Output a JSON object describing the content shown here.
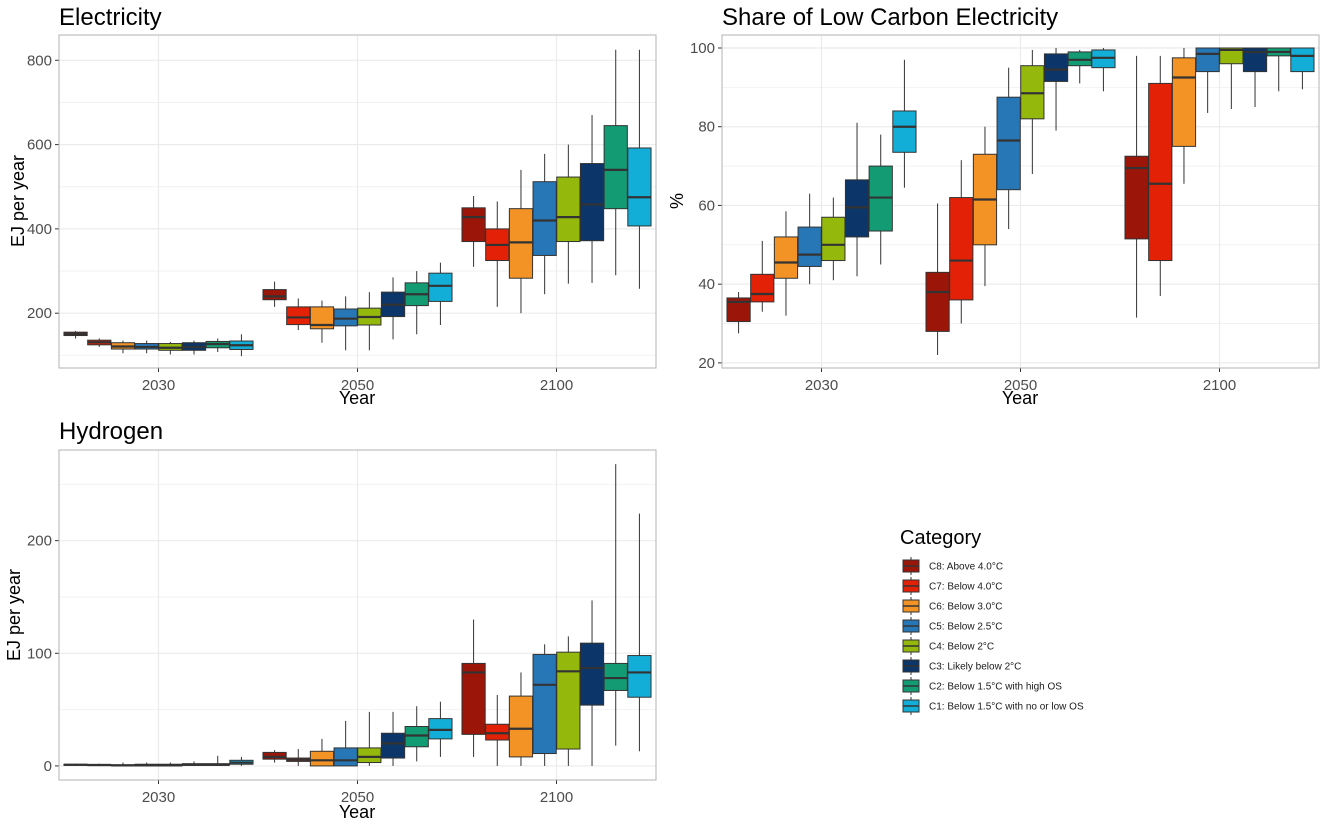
{
  "chart_data": [
    {
      "id": "electricity",
      "type": "boxplot",
      "title": "Electricity",
      "xlabel": "Year",
      "ylabel": "EJ per year",
      "ylim": [
        70,
        860
      ],
      "yticks": [
        200,
        400,
        600,
        800
      ],
      "categories": [
        "2030",
        "2050",
        "2100"
      ],
      "series": [
        {
          "name": "C8: Above 4.0°C",
          "boxes": [
            [
              140,
              147,
              151,
              155,
              158
            ],
            [
              215,
              232,
              240,
              256,
              275
            ],
            [
              310,
              370,
              428,
              450,
              478
            ]
          ]
        },
        {
          "name": "C7: Below 4.0°C",
          "boxes": [
            [
              120,
              125,
              131,
              136,
              140
            ],
            [
              160,
              173,
              190,
              215,
              235
            ],
            [
              215,
              325,
              362,
              400,
              465
            ]
          ]
        },
        {
          "name": "C6: Below 3.0°C",
          "boxes": [
            [
              105,
              115,
              121,
              130,
              135
            ],
            [
              130,
              163,
              172,
              215,
              230
            ],
            [
              200,
              283,
              368,
              448,
              540
            ]
          ]
        },
        {
          "name": "C5: Below 2.5°C",
          "boxes": [
            [
              105,
              115,
              120,
              128,
              135
            ],
            [
              112,
              170,
              187,
              210,
              240
            ],
            [
              245,
              337,
              420,
              512,
              578
            ]
          ]
        },
        {
          "name": "C4: Below 2°C",
          "boxes": [
            [
              102,
              112,
              118,
              128,
              132
            ],
            [
              112,
              172,
              191,
              212,
              250
            ],
            [
              270,
              370,
              428,
              523,
              600
            ]
          ]
        },
        {
          "name": "C3: Likely below 2°C",
          "boxes": [
            [
              102,
              112,
              120,
              130,
              135
            ],
            [
              138,
              192,
              220,
              250,
              285
            ],
            [
              272,
              372,
              458,
              555,
              670
            ]
          ]
        },
        {
          "name": "C2: Below 1.5°C with high OS",
          "boxes": [
            [
              108,
              118,
              127,
              133,
              140
            ],
            [
              150,
              218,
              245,
              272,
              300
            ],
            [
              290,
              448,
              540,
              645,
              825
            ]
          ]
        },
        {
          "name": "C1: Below 1.5°C with no or low OS",
          "boxes": [
            [
              98,
              114,
              124,
              134,
              150
            ],
            [
              172,
              228,
              265,
              295,
              320
            ],
            [
              258,
              407,
              475,
              592,
              825
            ]
          ]
        }
      ]
    },
    {
      "id": "low-carbon",
      "type": "boxplot",
      "title": "Share of Low Carbon Electricity",
      "xlabel": "Year",
      "ylabel": "%",
      "ylim": [
        18.7,
        103.3
      ],
      "yticks": [
        20,
        40,
        60,
        80,
        100
      ],
      "categories": [
        "2030",
        "2050",
        "2100"
      ],
      "series": [
        {
          "name": "C8: Above 4.0°C",
          "boxes": [
            [
              27.5,
              30.5,
              35.5,
              36.5,
              38
            ],
            [
              22,
              28,
              38,
              43,
              60.5
            ],
            [
              31.5,
              51.5,
              69.5,
              72.5,
              98
            ]
          ]
        },
        {
          "name": "C7: Below 4.0°C",
          "boxes": [
            [
              33,
              35.5,
              37.5,
              42.5,
              51
            ],
            [
              30,
              36,
              46,
              62,
              71.5
            ],
            [
              37,
              46,
              65.5,
              91,
              98
            ]
          ]
        },
        {
          "name": "C6: Below 3.0°C",
          "boxes": [
            [
              32,
              41.5,
              45.5,
              52,
              58.5
            ],
            [
              39.5,
              50,
              61.5,
              73,
              80
            ],
            [
              65.5,
              75,
              92.5,
              97.5,
              100
            ]
          ]
        },
        {
          "name": "C5: Below 2.5°C",
          "boxes": [
            [
              40,
              44.5,
              47.5,
              54.5,
              63
            ],
            [
              54,
              64,
              76.5,
              87.5,
              95
            ],
            [
              83.5,
              94,
              98.5,
              100,
              100
            ]
          ]
        },
        {
          "name": "C4: Below 2°C",
          "boxes": [
            [
              41,
              46,
              50,
              57,
              62
            ],
            [
              68,
              82,
              88.5,
              95.5,
              99.5
            ],
            [
              84.5,
              96,
              99.5,
              100,
              100
            ]
          ]
        },
        {
          "name": "C3: Likely below 2°C",
          "boxes": [
            [
              42,
              52,
              59.5,
              66.5,
              81
            ],
            [
              79,
              91.5,
              94.5,
              98.5,
              100
            ],
            [
              85,
              94,
              99,
              100,
              100
            ]
          ]
        },
        {
          "name": "C2: Below 1.5°C with high OS",
          "boxes": [
            [
              45,
              53.5,
              62,
              70,
              78
            ],
            [
              91,
              95.5,
              97,
              99,
              99.5
            ],
            [
              89,
              98,
              99,
              100,
              100
            ]
          ]
        },
        {
          "name": "C1: Below 1.5°C with no or low OS",
          "boxes": [
            [
              64.5,
              73.5,
              80,
              84,
              97
            ],
            [
              89,
              95,
              97.5,
              99.5,
              100
            ],
            [
              89.5,
              94,
              98,
              100,
              100
            ]
          ]
        }
      ]
    },
    {
      "id": "hydrogen",
      "type": "boxplot",
      "title": "Hydrogen",
      "xlabel": "Year",
      "ylabel": "EJ per year",
      "ylim": [
        -12.5,
        280.5
      ],
      "yticks": [
        0,
        100,
        200
      ],
      "categories": [
        "2030",
        "2050",
        "2100"
      ],
      "series": [
        {
          "name": "C8: Above 4.0°C",
          "boxes": [
            [
              0,
              0.5,
              1,
              1.5,
              2
            ],
            [
              3,
              6,
              8,
              12,
              14
            ],
            [
              8,
              28,
              83,
              91,
              130
            ]
          ]
        },
        {
          "name": "C7: Below 4.0°C",
          "boxes": [
            [
              0,
              0.3,
              0.8,
              1.3,
              2
            ],
            [
              0,
              4,
              5.5,
              7,
              15
            ],
            [
              0,
              23,
              29,
              37,
              63
            ]
          ]
        },
        {
          "name": "C6: Below 3.0°C",
          "boxes": [
            [
              0,
              0,
              0.5,
              1,
              3
            ],
            [
              0,
              0,
              5,
              13,
              24
            ],
            [
              0,
              8,
              33,
              62,
              83
            ]
          ]
        },
        {
          "name": "C5: Below 2.5°C",
          "boxes": [
            [
              0,
              0,
              0.5,
              1.5,
              3
            ],
            [
              0,
              0,
              5,
              16,
              40
            ],
            [
              0,
              11,
              72,
              99,
              108
            ]
          ]
        },
        {
          "name": "C4: Below 2°C",
          "boxes": [
            [
              0,
              0,
              0.5,
              1.5,
              3
            ],
            [
              0,
              3,
              8,
              16,
              48
            ],
            [
              0,
              15,
              84,
              101,
              115
            ]
          ]
        },
        {
          "name": "C3: Likely below 2°C",
          "boxes": [
            [
              0,
              0.5,
              1,
              2,
              4
            ],
            [
              0,
              7,
              20,
              29,
              48
            ],
            [
              0,
              54,
              87,
              109,
              147
            ]
          ]
        },
        {
          "name": "C2: Below 1.5°C with high OS",
          "boxes": [
            [
              0,
              0.5,
              1,
              2,
              9
            ],
            [
              4,
              17,
              27,
              35,
              53
            ],
            [
              18,
              67,
              78,
              91,
              268
            ]
          ]
        },
        {
          "name": "C1: Below 1.5°C with no or low OS",
          "boxes": [
            [
              0,
              1.5,
              3,
              5,
              8
            ],
            [
              8,
              24,
              32,
              42,
              57
            ],
            [
              13,
              61,
              83,
              98,
              224
            ]
          ]
        }
      ]
    }
  ],
  "legend": {
    "title": "Category",
    "items": [
      {
        "label": "C8: Above 4.0°C",
        "color": "#9b1509"
      },
      {
        "label": "C7: Below 4.0°C",
        "color": "#e32106"
      },
      {
        "label": "C6: Below 3.0°C",
        "color": "#f39325"
      },
      {
        "label": "C5: Below 2.5°C",
        "color": "#2776b6"
      },
      {
        "label": "C4: Below 2°C",
        "color": "#94b90c"
      },
      {
        "label": "C3: Likely below 2°C",
        "color": "#0c356a"
      },
      {
        "label": "C2: Below 1.5°C with high OS",
        "color": "#139b74"
      },
      {
        "label": "C1: Below 1.5°C with no or low OS",
        "color": "#12aed8"
      }
    ]
  }
}
